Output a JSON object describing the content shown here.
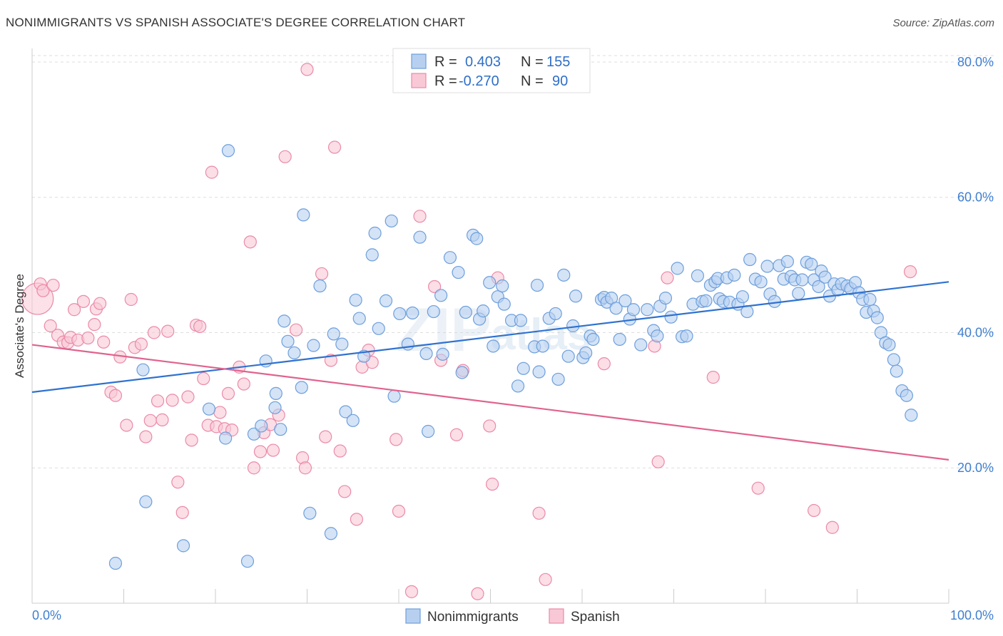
{
  "title": "NONIMMIGRANTS VS SPANISH ASSOCIATE'S DEGREE CORRELATION CHART",
  "source": "Source: ZipAtlas.com",
  "watermark": {
    "zip": "ZIP",
    "atlas": "atlas"
  },
  "legend": {
    "rows": [
      {
        "r_label": "R =",
        "r_value": "0.403",
        "n_label": "N =",
        "n_value": "155"
      },
      {
        "r_label": "R =",
        "r_value": "-0.270",
        "n_label": "N =",
        "n_value": "90"
      }
    ]
  },
  "bottom_legend": [
    "Nonimmigrants",
    "Spanish"
  ],
  "colors": {
    "blue_fill": "#b8d0f0",
    "blue_stroke": "#6d9fdc",
    "blue_line": "#2f72d0",
    "pink_fill": "#f9c8d6",
    "pink_stroke": "#eb8aa8",
    "pink_line": "#e0628e",
    "grid": "#dddddd",
    "axis_text": "#3f7fd0"
  },
  "chart_data": {
    "type": "scatter",
    "title": "NONIMMIGRANTS VS SPANISH ASSOCIATE'S DEGREE CORRELATION CHART",
    "xlabel": "",
    "ylabel": "Associate's Degree",
    "xlim": [
      0,
      100
    ],
    "ylim": [
      0,
      82
    ],
    "x_tick_labels": [
      "0.0%",
      "100.0%"
    ],
    "y_ticks": [
      20,
      40,
      60,
      80
    ],
    "y_tick_labels": [
      "20.0%",
      "40.0%",
      "60.0%",
      "80.0%"
    ],
    "grid": true,
    "legend_position": "top-center",
    "series": [
      {
        "name": "Nonimmigrants",
        "R": 0.403,
        "N": 155,
        "trend": {
          "x": [
            0,
            100
          ],
          "y": [
            31.2,
            47.5
          ]
        },
        "points": [
          [
            9.1,
            5.9
          ],
          [
            12.1,
            34.5
          ],
          [
            12.4,
            15.0
          ],
          [
            16.5,
            8.5
          ],
          [
            19.3,
            28.7
          ],
          [
            21.1,
            24.4
          ],
          [
            21.4,
            66.9
          ],
          [
            23.5,
            6.2
          ],
          [
            24.2,
            25.0
          ],
          [
            25.0,
            26.2
          ],
          [
            25.5,
            35.8
          ],
          [
            26.5,
            28.9
          ],
          [
            26.6,
            31.0
          ],
          [
            27.1,
            25.7
          ],
          [
            27.5,
            41.7
          ],
          [
            27.9,
            38.7
          ],
          [
            28.6,
            37.0
          ],
          [
            29.4,
            31.9
          ],
          [
            29.6,
            57.4
          ],
          [
            30.3,
            13.3
          ],
          [
            30.7,
            38.1
          ],
          [
            31.4,
            46.9
          ],
          [
            32.6,
            10.3
          ],
          [
            32.9,
            39.8
          ],
          [
            33.8,
            38.3
          ],
          [
            34.2,
            28.3
          ],
          [
            35.0,
            27.0
          ],
          [
            35.3,
            44.8
          ],
          [
            35.7,
            42.1
          ],
          [
            36.2,
            36.5
          ],
          [
            37.1,
            51.5
          ],
          [
            37.4,
            54.7
          ],
          [
            37.8,
            40.6
          ],
          [
            38.6,
            44.7
          ],
          [
            39.2,
            56.5
          ],
          [
            39.5,
            30.6
          ],
          [
            40.1,
            42.8
          ],
          [
            41.0,
            38.3
          ],
          [
            41.5,
            42.9
          ],
          [
            42.3,
            54.1
          ],
          [
            43.0,
            36.9
          ],
          [
            43.2,
            25.4
          ],
          [
            43.8,
            43.1
          ],
          [
            44.6,
            45.5
          ],
          [
            44.8,
            36.8
          ],
          [
            45.6,
            51.1
          ],
          [
            46.5,
            48.9
          ],
          [
            46.9,
            34.1
          ],
          [
            47.3,
            43.0
          ],
          [
            48.1,
            54.4
          ],
          [
            48.5,
            53.9
          ],
          [
            48.8,
            42.0
          ],
          [
            49.2,
            43.2
          ],
          [
            49.9,
            47.4
          ],
          [
            50.3,
            38.0
          ],
          [
            50.8,
            45.3
          ],
          [
            51.3,
            46.9
          ],
          [
            51.5,
            44.2
          ],
          [
            52.3,
            41.8
          ],
          [
            53.0,
            32.1
          ],
          [
            53.3,
            41.8
          ],
          [
            53.6,
            34.7
          ],
          [
            54.8,
            37.9
          ],
          [
            55.1,
            47.0
          ],
          [
            55.3,
            34.2
          ],
          [
            55.7,
            38.0
          ],
          [
            56.4,
            42.1
          ],
          [
            57.1,
            42.8
          ],
          [
            57.4,
            33.1
          ],
          [
            58.0,
            48.5
          ],
          [
            58.5,
            36.5
          ],
          [
            59.0,
            41.0
          ],
          [
            59.3,
            45.4
          ],
          [
            60.1,
            36.3
          ],
          [
            60.4,
            37.0
          ],
          [
            60.9,
            39.5
          ],
          [
            61.2,
            39.0
          ],
          [
            62.1,
            44.9
          ],
          [
            62.4,
            45.2
          ],
          [
            62.7,
            44.5
          ],
          [
            63.2,
            45.1
          ],
          [
            63.7,
            43.6
          ],
          [
            64.1,
            39.0
          ],
          [
            64.7,
            44.7
          ],
          [
            65.2,
            42.0
          ],
          [
            65.6,
            43.4
          ],
          [
            66.4,
            38.2
          ],
          [
            67.1,
            43.4
          ],
          [
            67.8,
            40.3
          ],
          [
            68.2,
            39.5
          ],
          [
            68.5,
            43.9
          ],
          [
            69.1,
            45.1
          ],
          [
            69.7,
            42.3
          ],
          [
            70.4,
            49.5
          ],
          [
            70.9,
            39.4
          ],
          [
            71.4,
            39.5
          ],
          [
            72.1,
            44.2
          ],
          [
            72.6,
            48.4
          ],
          [
            73.1,
            44.6
          ],
          [
            73.5,
            44.7
          ],
          [
            74.0,
            47.0
          ],
          [
            74.5,
            47.5
          ],
          [
            74.8,
            48.0
          ],
          [
            75.0,
            45.0
          ],
          [
            75.4,
            44.6
          ],
          [
            75.8,
            48.1
          ],
          [
            76.1,
            44.5
          ],
          [
            76.6,
            48.5
          ],
          [
            77.0,
            44.2
          ],
          [
            77.5,
            45.3
          ],
          [
            78.0,
            43.1
          ],
          [
            78.3,
            50.8
          ],
          [
            78.9,
            47.9
          ],
          [
            79.5,
            47.5
          ],
          [
            80.2,
            49.8
          ],
          [
            80.5,
            45.7
          ],
          [
            81.0,
            44.6
          ],
          [
            81.5,
            49.9
          ],
          [
            82.0,
            47.9
          ],
          [
            82.4,
            50.5
          ],
          [
            82.8,
            48.3
          ],
          [
            83.2,
            47.8
          ],
          [
            83.6,
            45.8
          ],
          [
            84.0,
            47.8
          ],
          [
            84.5,
            50.4
          ],
          [
            85.0,
            50.1
          ],
          [
            85.3,
            47.8
          ],
          [
            85.8,
            46.8
          ],
          [
            86.1,
            49.1
          ],
          [
            86.5,
            48.2
          ],
          [
            87.0,
            45.4
          ],
          [
            87.5,
            47.2
          ],
          [
            87.9,
            46.3
          ],
          [
            88.3,
            47.2
          ],
          [
            88.9,
            46.9
          ],
          [
            89.3,
            46.5
          ],
          [
            89.8,
            47.4
          ],
          [
            90.2,
            45.9
          ],
          [
            90.6,
            44.9
          ],
          [
            91.0,
            43.0
          ],
          [
            91.4,
            44.9
          ],
          [
            91.8,
            43.2
          ],
          [
            92.2,
            42.2
          ],
          [
            92.6,
            40.0
          ],
          [
            93.1,
            38.5
          ],
          [
            93.5,
            38.2
          ],
          [
            94.0,
            36.0
          ],
          [
            94.3,
            34.3
          ],
          [
            94.9,
            31.4
          ],
          [
            95.4,
            30.7
          ],
          [
            95.9,
            27.8
          ]
        ]
      },
      {
        "name": "Spanish",
        "R": -0.27,
        "N": 90,
        "trend": {
          "x": [
            0,
            100
          ],
          "y": [
            38.2,
            21.2
          ]
        },
        "points": [
          [
            0.6,
            45.0
          ],
          [
            0.9,
            47.2
          ],
          [
            1.2,
            46.2
          ],
          [
            2.0,
            41.0
          ],
          [
            2.3,
            47.0
          ],
          [
            2.8,
            39.6
          ],
          [
            3.4,
            38.6
          ],
          [
            3.9,
            38.5
          ],
          [
            4.2,
            39.3
          ],
          [
            4.6,
            43.4
          ],
          [
            5.0,
            38.9
          ],
          [
            5.6,
            44.6
          ],
          [
            6.1,
            39.2
          ],
          [
            6.8,
            41.2
          ],
          [
            7.0,
            43.5
          ],
          [
            7.4,
            44.3
          ],
          [
            7.8,
            38.6
          ],
          [
            8.6,
            31.2
          ],
          [
            9.1,
            30.7
          ],
          [
            9.6,
            36.4
          ],
          [
            10.3,
            26.3
          ],
          [
            10.8,
            44.9
          ],
          [
            11.2,
            37.8
          ],
          [
            11.9,
            38.3
          ],
          [
            12.4,
            24.6
          ],
          [
            12.9,
            27.0
          ],
          [
            13.3,
            40.0
          ],
          [
            13.7,
            29.9
          ],
          [
            14.2,
            27.1
          ],
          [
            14.8,
            40.2
          ],
          [
            15.3,
            30.0
          ],
          [
            15.9,
            17.9
          ],
          [
            16.4,
            13.4
          ],
          [
            17.0,
            30.5
          ],
          [
            17.4,
            24.1
          ],
          [
            17.9,
            41.1
          ],
          [
            18.3,
            40.9
          ],
          [
            18.7,
            33.2
          ],
          [
            19.2,
            26.3
          ],
          [
            19.6,
            63.7
          ],
          [
            20.1,
            26.1
          ],
          [
            20.5,
            28.2
          ],
          [
            21.0,
            25.8
          ],
          [
            21.4,
            31.0
          ],
          [
            21.8,
            25.6
          ],
          [
            22.6,
            34.9
          ],
          [
            23.1,
            32.4
          ],
          [
            23.8,
            53.4
          ],
          [
            24.2,
            20.0
          ],
          [
            24.9,
            22.4
          ],
          [
            25.3,
            25.2
          ],
          [
            26.0,
            26.4
          ],
          [
            26.3,
            22.6
          ],
          [
            26.9,
            27.8
          ],
          [
            27.6,
            66.0
          ],
          [
            28.8,
            40.4
          ],
          [
            29.5,
            21.5
          ],
          [
            29.8,
            20.0
          ],
          [
            31.6,
            48.7
          ],
          [
            32.0,
            24.6
          ],
          [
            32.6,
            35.9
          ],
          [
            33.0,
            67.4
          ],
          [
            33.6,
            22.5
          ],
          [
            34.1,
            16.5
          ],
          [
            35.4,
            12.4
          ],
          [
            36.0,
            34.9
          ],
          [
            36.7,
            37.4
          ],
          [
            37.1,
            35.6
          ],
          [
            39.7,
            24.2
          ],
          [
            40.0,
            13.6
          ],
          [
            41.4,
            1.7
          ],
          [
            42.3,
            57.2
          ],
          [
            43.9,
            46.8
          ],
          [
            44.6,
            35.9
          ],
          [
            46.3,
            24.9
          ],
          [
            47.0,
            34.4
          ],
          [
            48.6,
            1.4
          ],
          [
            49.9,
            26.2
          ],
          [
            50.2,
            17.6
          ],
          [
            50.8,
            48.1
          ],
          [
            55.3,
            13.3
          ],
          [
            56.0,
            3.5
          ],
          [
            62.4,
            35.4
          ],
          [
            67.9,
            38.0
          ],
          [
            68.3,
            20.9
          ],
          [
            69.3,
            48.1
          ],
          [
            74.3,
            33.4
          ],
          [
            79.2,
            17.0
          ],
          [
            85.3,
            13.7
          ],
          [
            87.3,
            11.2
          ],
          [
            95.8,
            49.0
          ],
          [
            30.0,
            78.9
          ]
        ]
      }
    ]
  }
}
